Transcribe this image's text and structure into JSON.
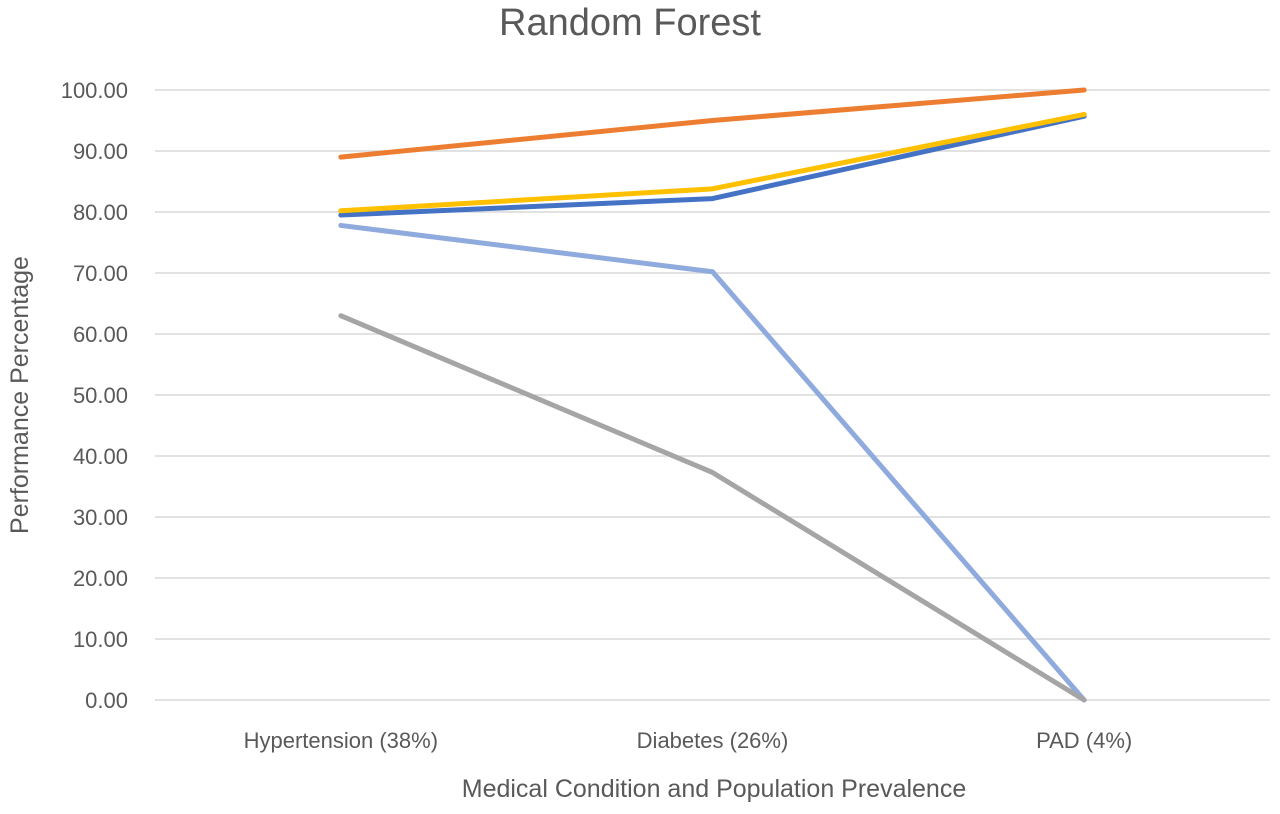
{
  "chart_data": {
    "type": "line",
    "title": "Random Forest",
    "xlabel": "Medical Condition and Population Prevalence",
    "ylabel": "Performance Percentage",
    "categories": [
      "Hypertension (38%)",
      "Diabetes (26%)",
      "PAD (4%)"
    ],
    "ylim": [
      0,
      100
    ],
    "yticks": [
      "0.00",
      "10.00",
      "20.00",
      "30.00",
      "40.00",
      "50.00",
      "60.00",
      "70.00",
      "80.00",
      "90.00",
      "100.00"
    ],
    "grid": true,
    "legend": "none",
    "series": [
      {
        "color": "#ED7D31",
        "values": [
          89,
          95,
          100
        ]
      },
      {
        "color": "#4472C4",
        "values": [
          79.5,
          82.2,
          95.7
        ]
      },
      {
        "color": "#FFC000",
        "values": [
          80.2,
          83.8,
          96.0
        ]
      },
      {
        "color": "#8FAADC",
        "values": [
          77.8,
          70.2,
          0
        ]
      },
      {
        "color": "#A5A5A5",
        "values": [
          63,
          37.3,
          0
        ]
      }
    ]
  }
}
